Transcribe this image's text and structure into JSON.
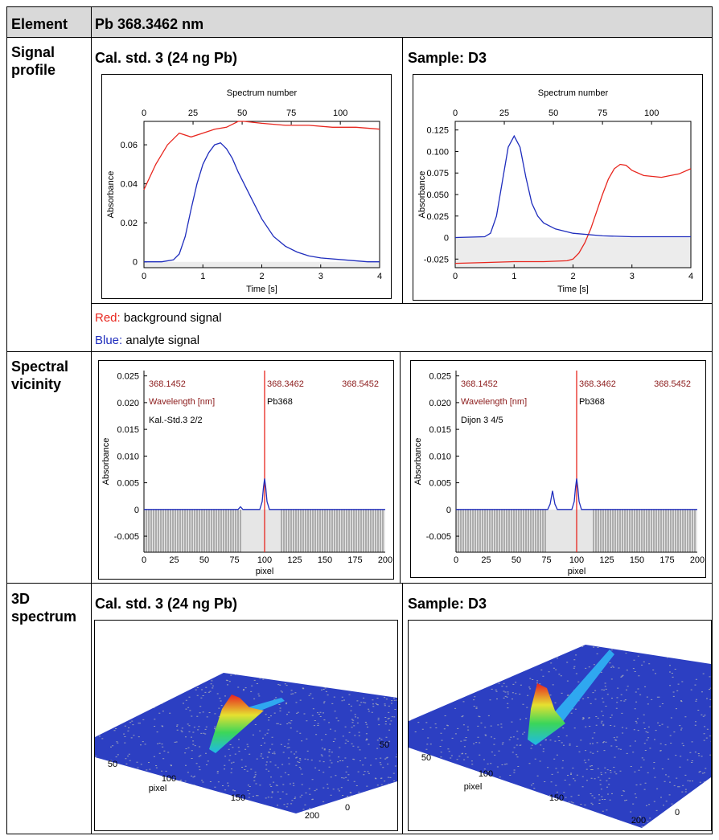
{
  "header": {
    "col1": "Element",
    "col2": "Pb 368.3462 nm"
  },
  "rows": {
    "signal_label": "Signal\nprofile",
    "vicinity_label": "Spectral\nvicinity",
    "spectrum3d_label": "3D\nspectrum"
  },
  "panels": {
    "cal_title": "Cal. std. 3 (24 ng Pb)",
    "sample_title": "Sample: D3",
    "cal3d_title": "Cal. std. 3 (24 ng Pb)",
    "sample3d_title": "Sample: D3"
  },
  "legend": {
    "red_word": "Red:",
    "red_text": " background signal",
    "blue_word": "Blue:",
    "blue_text": " analyte signal",
    "red_color": "#e8261e",
    "blue_color": "#1f2dbd"
  },
  "signal_cal": {
    "type": "line",
    "top_axis_label": "Spectrum number",
    "top_ticks": [
      "0",
      "25",
      "50",
      "75",
      "100"
    ],
    "xlabel": "Time [s]",
    "ylabel": "Absorbance",
    "xticks": [
      "0",
      "1",
      "2",
      "3",
      "4"
    ],
    "yticks": [
      "0",
      "0.02",
      "0.04",
      "0.06"
    ],
    "xlim": [
      0,
      4
    ],
    "ylim": [
      -0.003,
      0.072
    ],
    "series": [
      {
        "color": "#e8261e",
        "x": [
          0,
          0.2,
          0.4,
          0.6,
          0.8,
          1.0,
          1.2,
          1.4,
          1.6,
          1.7,
          2.0,
          2.4,
          2.8,
          3.2,
          3.6,
          4.0
        ],
        "y": [
          0.037,
          0.05,
          0.06,
          0.066,
          0.064,
          0.066,
          0.068,
          0.069,
          0.072,
          0.072,
          0.071,
          0.07,
          0.07,
          0.069,
          0.069,
          0.068
        ]
      },
      {
        "color": "#1f2dbd",
        "x": [
          0,
          0.3,
          0.5,
          0.6,
          0.7,
          0.8,
          0.9,
          1.0,
          1.1,
          1.2,
          1.3,
          1.4,
          1.5,
          1.6,
          1.8,
          2.0,
          2.2,
          2.4,
          2.6,
          2.8,
          3.0,
          3.4,
          3.8,
          4.0
        ],
        "y": [
          0.0,
          0.0,
          0.001,
          0.004,
          0.013,
          0.027,
          0.04,
          0.05,
          0.056,
          0.06,
          0.061,
          0.058,
          0.053,
          0.046,
          0.034,
          0.022,
          0.013,
          0.008,
          0.005,
          0.003,
          0.002,
          0.001,
          0.0,
          0.0
        ]
      }
    ]
  },
  "signal_sample": {
    "type": "line",
    "top_axis_label": "Spectrum number",
    "top_ticks": [
      "0",
      "25",
      "50",
      "75",
      "100"
    ],
    "xlabel": "Time [s]",
    "ylabel": "Absorbance",
    "xticks": [
      "0",
      "1",
      "2",
      "3",
      "4"
    ],
    "yticks": [
      "-0.025",
      "0",
      "0.025",
      "0.050",
      "0.075",
      "0.100",
      "0.125"
    ],
    "xlim": [
      0,
      4
    ],
    "ylim": [
      -0.035,
      0.135
    ],
    "series": [
      {
        "color": "#e8261e",
        "x": [
          0,
          0.5,
          1.0,
          1.5,
          1.9,
          2.0,
          2.1,
          2.2,
          2.3,
          2.4,
          2.5,
          2.6,
          2.7,
          2.8,
          2.9,
          3.0,
          3.2,
          3.5,
          3.8,
          4.0
        ],
        "y": [
          -0.03,
          -0.029,
          -0.028,
          -0.028,
          -0.027,
          -0.025,
          -0.018,
          -0.006,
          0.01,
          0.03,
          0.05,
          0.068,
          0.08,
          0.085,
          0.084,
          0.078,
          0.072,
          0.07,
          0.074,
          0.08
        ]
      },
      {
        "color": "#1f2dbd",
        "x": [
          0,
          0.5,
          0.6,
          0.7,
          0.8,
          0.9,
          1.0,
          1.1,
          1.2,
          1.3,
          1.4,
          1.5,
          1.7,
          2.0,
          2.5,
          3.0,
          3.5,
          4.0
        ],
        "y": [
          0.0,
          0.001,
          0.005,
          0.025,
          0.065,
          0.105,
          0.118,
          0.105,
          0.07,
          0.04,
          0.025,
          0.017,
          0.01,
          0.005,
          0.002,
          0.001,
          0.001,
          0.001
        ]
      }
    ]
  },
  "vicinity_cal": {
    "type": "line",
    "xlabel": "pixel",
    "ylabel": "Absorbance",
    "wl_left": "368.1452",
    "wl_center": "368.3462",
    "wl_right": "368.5452",
    "wl_label": "Wavelength [nm]",
    "element_label": "Pb368",
    "sample_label": "Kal.-Std.3 2/2",
    "xticks": [
      "0",
      "25",
      "50",
      "75",
      "100",
      "125",
      "150",
      "175",
      "200"
    ],
    "yticks": [
      "-0.005",
      "0",
      "0.005",
      "0.010",
      "0.015",
      "0.020",
      "0.025"
    ],
    "xlim": [
      0,
      200
    ],
    "ylim": [
      -0.008,
      0.026
    ],
    "series": [
      {
        "color": "#1f2dbd",
        "x": [
          0,
          78,
          80,
          82,
          96,
          98,
          99,
          100,
          101,
          102,
          104,
          200
        ],
        "y": [
          0,
          0,
          0.0005,
          0,
          0,
          0.0015,
          0.004,
          0.0058,
          0.004,
          0.0015,
          0,
          0
        ]
      }
    ]
  },
  "vicinity_sample": {
    "type": "line",
    "xlabel": "pixel",
    "ylabel": "Absorbance",
    "wl_left": "368.1452",
    "wl_center": "368.3462",
    "wl_right": "368.5452",
    "wl_label": "Wavelength [nm]",
    "element_label": "Pb368",
    "sample_label": "Dijon 3 4/5",
    "xticks": [
      "0",
      "25",
      "50",
      "75",
      "100",
      "125",
      "150",
      "175",
      "200"
    ],
    "yticks": [
      "-0.005",
      "0",
      "0.005",
      "0.010",
      "0.015",
      "0.020",
      "0.025"
    ],
    "xlim": [
      0,
      200
    ],
    "ylim": [
      -0.008,
      0.026
    ],
    "series": [
      {
        "color": "#1f2dbd",
        "x": [
          0,
          76,
          78,
          80,
          82,
          84,
          96,
          98,
          99,
          100,
          101,
          102,
          104,
          200
        ],
        "y": [
          0,
          0,
          0.001,
          0.0035,
          0.001,
          0,
          0,
          0.0015,
          0.004,
          0.0058,
          0.004,
          0.0015,
          0,
          0
        ]
      }
    ]
  },
  "spectrum3d_cal": {
    "axis_labels": [
      "50",
      "100",
      "pixel",
      "150",
      "200",
      "0",
      "50"
    ]
  },
  "spectrum3d_sample": {
    "axis_labels": [
      "50",
      "100",
      "pixel",
      "150",
      "200",
      "0"
    ]
  }
}
